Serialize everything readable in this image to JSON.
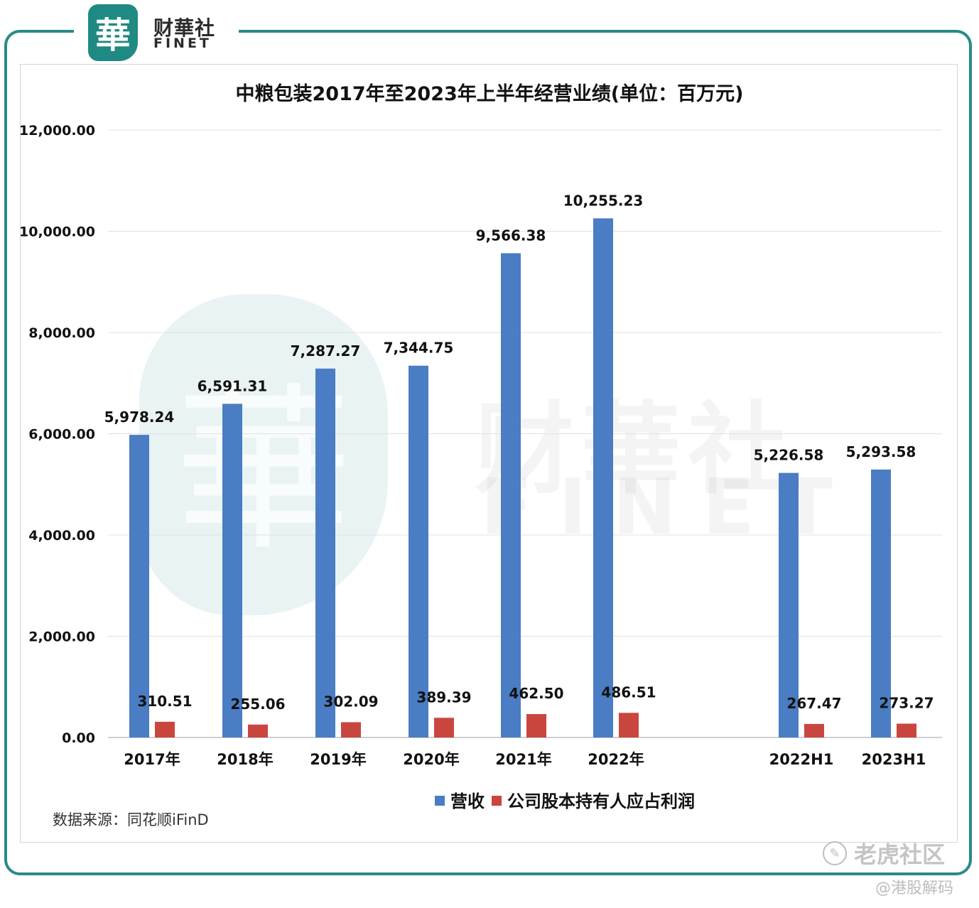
{
  "brand": {
    "logo_char": "華",
    "name_cn": "财華社",
    "name_en": "FINET"
  },
  "watermark": {
    "seal_char": "華",
    "text_cn": "财華社",
    "text_en": "FINET"
  },
  "source_note": "数据来源：同花顺iFinD",
  "corner_marks": {
    "platform": "老虎社区",
    "author": "@港股解码"
  },
  "colors": {
    "revenue": "#4a7dc3",
    "profit": "#c9463f",
    "frame": "#2a8a86",
    "grid": "#e0e0e0"
  },
  "chart_data": {
    "type": "bar",
    "title": "中粮包装2017年至2023年上半年经营业绩(单位：百万元)",
    "categories": [
      "2017年",
      "2018年",
      "2019年",
      "2020年",
      "2021年",
      "2022年",
      "2022H1",
      "2023H1"
    ],
    "series": [
      {
        "name": "营收",
        "values": [
          5978.24,
          6591.31,
          7287.27,
          7344.75,
          9566.38,
          10255.23,
          5226.58,
          5293.58
        ],
        "labels": [
          "5,978.24",
          "6,591.31",
          "7,287.27",
          "7,344.75",
          "9,566.38",
          "10,255.23",
          "5,226.58",
          "5,293.58"
        ]
      },
      {
        "name": "公司股本持有人应占利润",
        "values": [
          310.51,
          255.06,
          302.09,
          389.39,
          462.5,
          486.51,
          267.47,
          273.27
        ],
        "labels": [
          "310.51",
          "255.06",
          "302.09",
          "389.39",
          "462.50",
          "486.51",
          "267.47",
          "273.27"
        ]
      }
    ],
    "ylim": [
      0,
      12000
    ],
    "yticks": [
      "0.00",
      "2,000.00",
      "4,000.00",
      "6,000.00",
      "8,000.00",
      "10,000.00",
      "12,000.00"
    ],
    "ytick_values": [
      0,
      2000,
      4000,
      6000,
      8000,
      10000,
      12000
    ],
    "grid": true,
    "legend_position": "bottom"
  }
}
